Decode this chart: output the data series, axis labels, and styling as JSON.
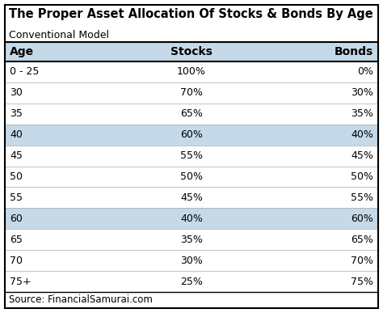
{
  "title": "The Proper Asset Allocation Of Stocks & Bonds By Age",
  "subtitle": "Conventional Model",
  "source": "Source: FinancialSamurai.com",
  "columns": [
    "Age",
    "Stocks",
    "Bonds"
  ],
  "rows": [
    [
      "0 - 25",
      "100%",
      "0%"
    ],
    [
      "30",
      "70%",
      "30%"
    ],
    [
      "35",
      "65%",
      "35%"
    ],
    [
      "40",
      "60%",
      "40%"
    ],
    [
      "45",
      "55%",
      "45%"
    ],
    [
      "50",
      "50%",
      "50%"
    ],
    [
      "55",
      "45%",
      "55%"
    ],
    [
      "60",
      "40%",
      "60%"
    ],
    [
      "65",
      "35%",
      "65%"
    ],
    [
      "70",
      "30%",
      "70%"
    ],
    [
      "75+",
      "25%",
      "75%"
    ]
  ],
  "highlighted_rows": [
    3,
    7
  ],
  "highlight_color": "#c5d9e8",
  "header_color": "#c5d9e8",
  "bg_color": "#ffffff",
  "border_color": "#000000",
  "title_fontsize": 10.5,
  "subtitle_fontsize": 9.0,
  "header_fontsize": 10,
  "cell_fontsize": 9.0,
  "source_fontsize": 8.5
}
